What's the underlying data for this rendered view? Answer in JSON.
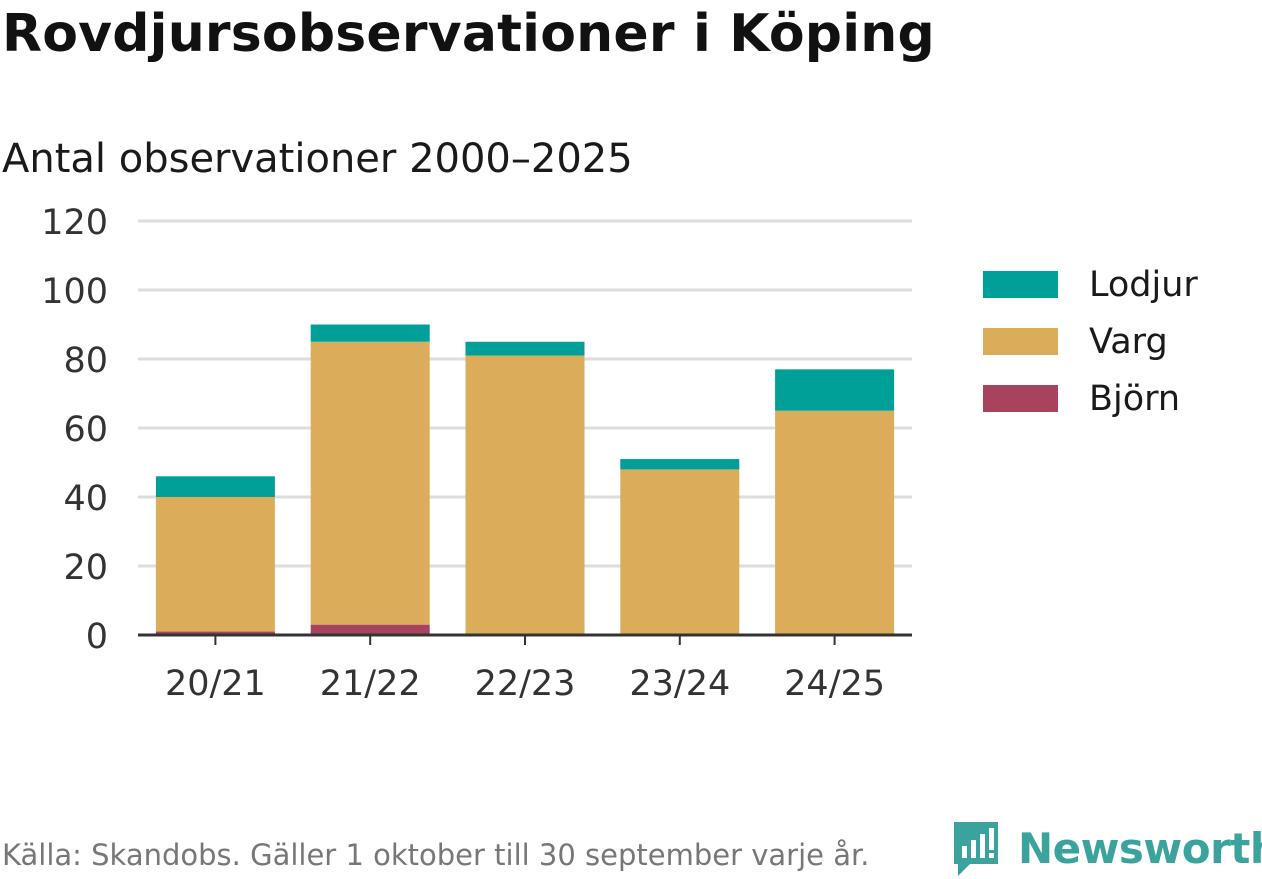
{
  "title": "Rovdjursobservationer i Köping",
  "subtitle": "Antal observationer 2000–2025",
  "source": "Källa: Skandobs. Gäller 1 oktober till 30 september varje år.",
  "brand": "Newsworthy",
  "colors": {
    "lodjur": "#00a098",
    "varg": "#dbad5a",
    "bjorn": "#a8435e",
    "grid": "#dddddd",
    "axis": "#333333",
    "brand": "#3aa39d"
  },
  "legend": [
    {
      "label": "Lodjur",
      "color": "#00a098"
    },
    {
      "label": "Varg",
      "color": "#dbad5a"
    },
    {
      "label": "Björn",
      "color": "#a8435e"
    }
  ],
  "chart_data": {
    "type": "bar",
    "stacked": true,
    "title": "Rovdjursobservationer i Köping",
    "subtitle": "Antal observationer 2000–2025",
    "categories": [
      "20/21",
      "21/22",
      "22/23",
      "23/24",
      "24/25"
    ],
    "series": [
      {
        "name": "Björn",
        "color": "#a8435e",
        "values": [
          1,
          3,
          0,
          0,
          0
        ]
      },
      {
        "name": "Varg",
        "color": "#dbad5a",
        "values": [
          39,
          82,
          81,
          48,
          65
        ]
      },
      {
        "name": "Lodjur",
        "color": "#00a098",
        "values": [
          6,
          5,
          4,
          3,
          12
        ]
      }
    ],
    "ylim": [
      0,
      120
    ],
    "yticks": [
      0,
      20,
      40,
      60,
      80,
      100,
      120
    ],
    "xlabel": "",
    "ylabel": "",
    "grid": true,
    "legend_position": "right"
  }
}
